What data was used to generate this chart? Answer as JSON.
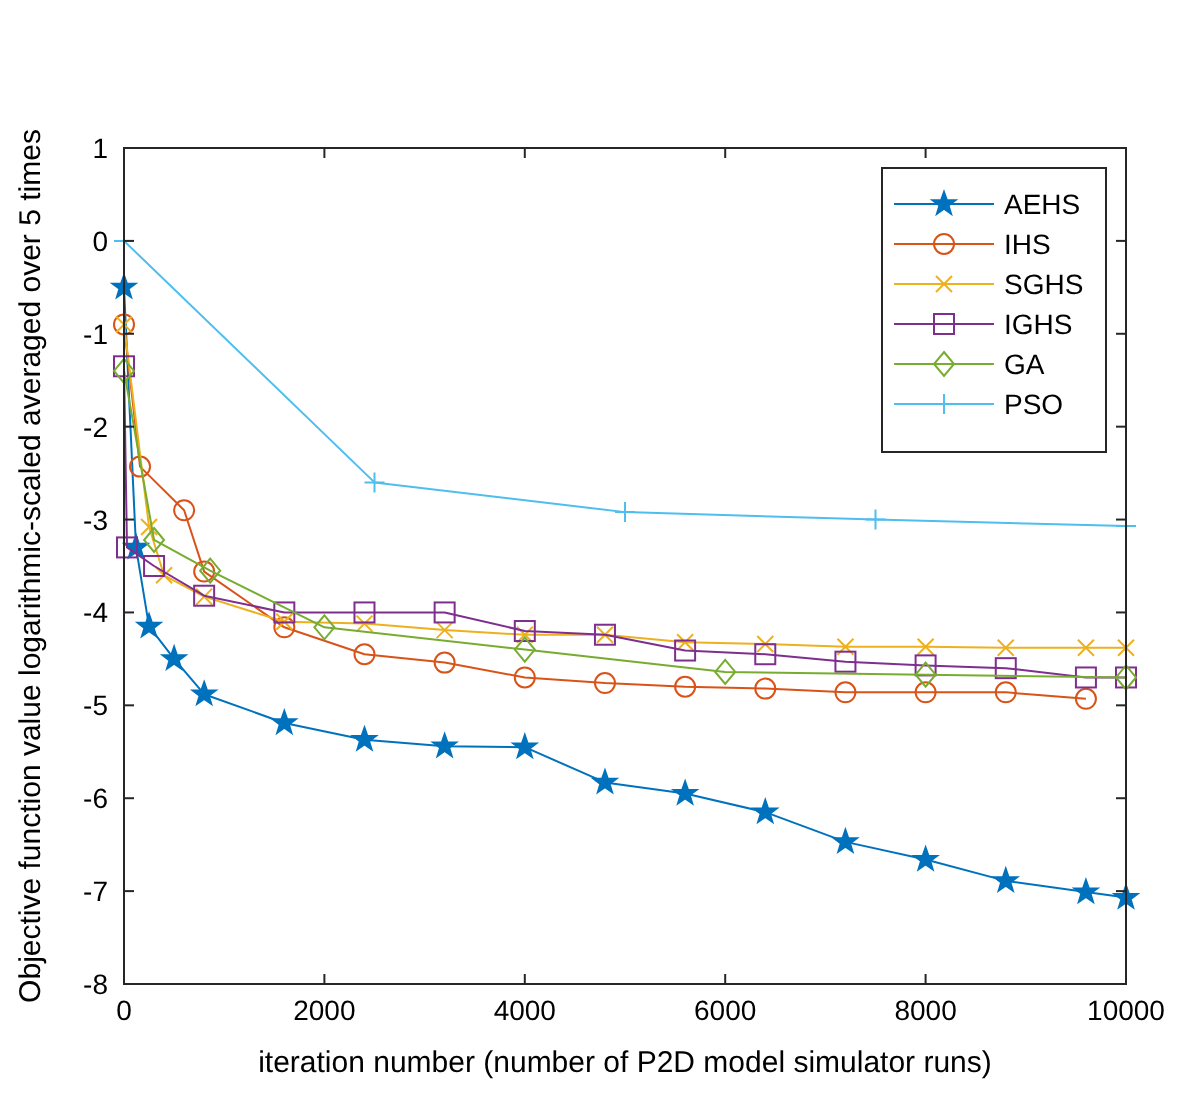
{
  "chart_data": {
    "type": "line",
    "xlabel": "iteration number (number of P2D model simulator runs)",
    "ylabel": "Objective function value logarithmic-scaled averaged over 5 times",
    "xlim": [
      0,
      10000
    ],
    "ylim": [
      -8,
      1
    ],
    "xticks": [
      0,
      2000,
      4000,
      6000,
      8000,
      10000
    ],
    "yticks": [
      -8,
      -7,
      -6,
      -5,
      -4,
      -3,
      -2,
      -1,
      0,
      1
    ],
    "legend": "top right",
    "grid": false,
    "series": [
      {
        "name": "AEHS",
        "color": "#0072bd",
        "marker": "star",
        "x": [
          0,
          120,
          250,
          500,
          800,
          1600,
          2400,
          3200,
          4000,
          4800,
          5600,
          6400,
          7200,
          8000,
          8800,
          9600,
          10000
        ],
        "values": [
          -0.5,
          -3.3,
          -4.15,
          -4.5,
          -4.88,
          -5.19,
          -5.37,
          -5.44,
          -5.45,
          -5.83,
          -5.95,
          -6.15,
          -6.47,
          -6.66,
          -6.89,
          -7.01,
          -7.07
        ]
      },
      {
        "name": "IHS",
        "color": "#d95319",
        "marker": "circle",
        "x": [
          0,
          160,
          600,
          800,
          1600,
          2400,
          3200,
          4000,
          4800,
          5600,
          6400,
          7200,
          8000,
          8800,
          9600
        ],
        "values": [
          -0.9,
          -2.43,
          -2.9,
          -3.56,
          -4.16,
          -4.45,
          -4.54,
          -4.7,
          -4.76,
          -4.8,
          -4.82,
          -4.86,
          -4.86,
          -4.86,
          -4.93
        ]
      },
      {
        "name": "SGHS",
        "color": "#edb120",
        "marker": "x",
        "x": [
          0,
          250,
          400,
          800,
          1600,
          2400,
          3200,
          4000,
          4800,
          5600,
          6400,
          7200,
          8000,
          8800,
          9600,
          10000
        ],
        "values": [
          -0.9,
          -3.08,
          -3.6,
          -3.83,
          -4.1,
          -4.12,
          -4.19,
          -4.24,
          -4.24,
          -4.32,
          -4.34,
          -4.37,
          -4.37,
          -4.38,
          -4.38,
          -4.38
        ]
      },
      {
        "name": "IGHS",
        "color": "#7e2f8e",
        "marker": "square",
        "x": [
          0,
          30,
          300,
          800,
          1600,
          2400,
          3200,
          4000,
          4800,
          5600,
          6400,
          7200,
          8000,
          8800,
          9600,
          10000
        ],
        "values": [
          -1.35,
          -3.3,
          -3.5,
          -3.82,
          -4.0,
          -4.0,
          -4.0,
          -4.2,
          -4.24,
          -4.41,
          -4.45,
          -4.53,
          -4.57,
          -4.6,
          -4.7,
          -4.7
        ]
      },
      {
        "name": "GA",
        "color": "#77ac30",
        "marker": "diamond",
        "x": [
          0,
          300,
          860,
          2000,
          4000,
          6000,
          8000,
          10000
        ],
        "values": [
          -1.4,
          -3.22,
          -3.55,
          -4.16,
          -4.4,
          -4.64,
          -4.67,
          -4.7
        ]
      },
      {
        "name": "PSO",
        "color": "#4dbeee",
        "marker": "cross",
        "x": [
          0,
          2500,
          5000,
          7500,
          10000
        ],
        "values": [
          0,
          -2.6,
          -2.92,
          -3.0,
          -3.07
        ]
      }
    ]
  }
}
